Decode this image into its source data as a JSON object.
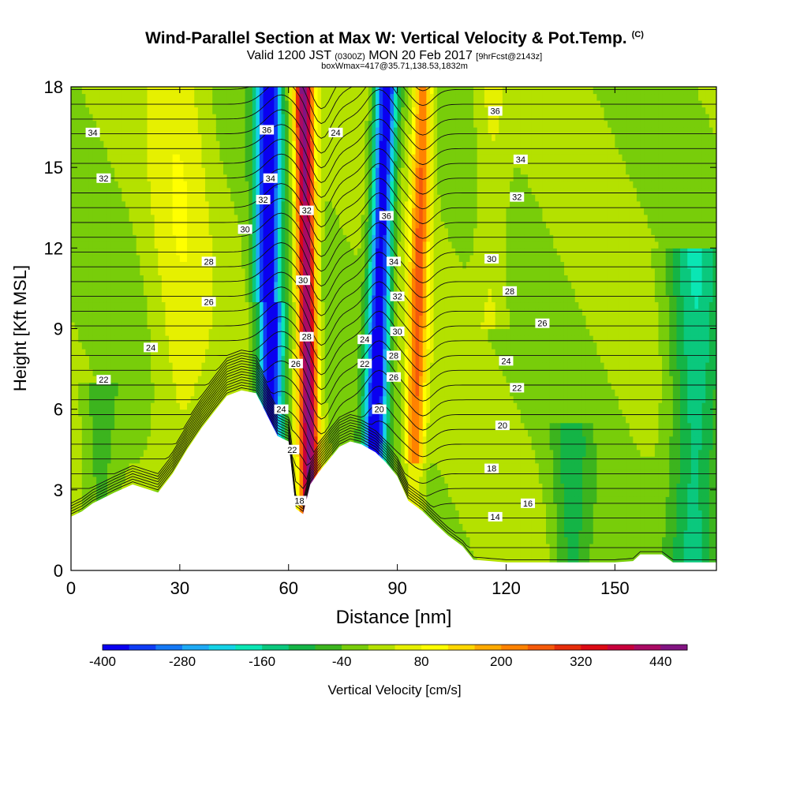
{
  "chart_data": {
    "type": "heatmap",
    "title": "Wind-Parallel Section at Max W: Vertical Velocity & Pot.Temp.",
    "title_mark": "(C)",
    "subtitle_prefix": "Valid 1200 JST",
    "subtitle_utc": "(0300Z)",
    "subtitle_date": "MON 20 Feb 2017",
    "subtitle_fcst": "[9hrFcst@2143z]",
    "subsubtitle": "boxWmax=417@35.71,138.53,1832m",
    "xlabel": "Distance [nm]",
    "ylabel": "Height [Kft MSL]",
    "xlim": [
      0,
      178
    ],
    "ylim": [
      0,
      18
    ],
    "xticks": [
      "0",
      "30",
      "60",
      "90",
      "120",
      "150"
    ],
    "xtick_values": [
      0,
      30,
      60,
      90,
      120,
      150
    ],
    "yticks": [
      "0",
      "3",
      "6",
      "9",
      "12",
      "15",
      "18"
    ],
    "ytick_values": [
      0,
      3,
      6,
      9,
      12,
      15,
      18
    ],
    "colorbar": {
      "label": "Vertical Velocity [cm/s]",
      "min": -400,
      "max": 480,
      "step": 40,
      "tick_labels": [
        "-400",
        "-280",
        "-160",
        "-40",
        "80",
        "200",
        "320",
        "440"
      ],
      "tick_values": [
        -400,
        -280,
        -160,
        -40,
        80,
        200,
        320,
        440
      ],
      "colors": [
        "#0a00f0",
        "#0f3cf5",
        "#1478f5",
        "#1eaaf5",
        "#14d2e6",
        "#0ae6b4",
        "#0ac87d",
        "#14b446",
        "#3cb41e",
        "#78cd0a",
        "#b4e100",
        "#e6f000",
        "#ffff00",
        "#ffd700",
        "#ffaa00",
        "#ff8200",
        "#f55a0a",
        "#e62d0a",
        "#dc0a14",
        "#c8003c",
        "#aa0a64",
        "#821482"
      ]
    },
    "terrain": [
      [
        0,
        2.0
      ],
      [
        3,
        2.2
      ],
      [
        6,
        2.5
      ],
      [
        9,
        2.7
      ],
      [
        12,
        2.9
      ],
      [
        17,
        3.2
      ],
      [
        24,
        2.9
      ],
      [
        28,
        3.6
      ],
      [
        32,
        4.5
      ],
      [
        36,
        5.3
      ],
      [
        40,
        6.0
      ],
      [
        43,
        6.5
      ],
      [
        47,
        6.7
      ],
      [
        51,
        6.6
      ],
      [
        54,
        5.8
      ],
      [
        57,
        5.0
      ],
      [
        60,
        4.8
      ],
      [
        62,
        2.3
      ],
      [
        64,
        2.1
      ],
      [
        66,
        3.2
      ],
      [
        68,
        3.6
      ],
      [
        71,
        4.1
      ],
      [
        74,
        4.6
      ],
      [
        77,
        4.8
      ],
      [
        80,
        4.7
      ],
      [
        84,
        4.4
      ],
      [
        87,
        4.0
      ],
      [
        90,
        3.5
      ],
      [
        93,
        2.6
      ],
      [
        97,
        2.2
      ],
      [
        100,
        1.8
      ],
      [
        104,
        1.3
      ],
      [
        108,
        0.9
      ],
      [
        111,
        0.4
      ],
      [
        120,
        0.3
      ],
      [
        140,
        0.3
      ],
      [
        150,
        0.3
      ],
      [
        155,
        0.35
      ],
      [
        157,
        0.6
      ],
      [
        163,
        0.6
      ],
      [
        166,
        0.3
      ],
      [
        178,
        0.3
      ]
    ],
    "w_features": [
      {
        "x0": 18,
        "x1": 40,
        "w": 40,
        "h": "trapezoid"
      },
      {
        "x0": 48,
        "x1": 62,
        "w": -400,
        "h": "band"
      },
      {
        "x0": 63,
        "x1": 71,
        "w": 400,
        "h": "band"
      },
      {
        "x0": 80,
        "x1": 91,
        "w": -380,
        "h": "band"
      },
      {
        "x0": 93,
        "x1": 100,
        "w": 220,
        "h": "band"
      },
      {
        "x0": 163,
        "x1": 176,
        "w": -150,
        "h": "slab"
      }
    ],
    "isentrope_labels": [
      {
        "x": 6,
        "y": 16.3,
        "text": "34"
      },
      {
        "x": 9,
        "y": 14.6,
        "text": "32"
      },
      {
        "x": 54,
        "y": 16.4,
        "text": "36"
      },
      {
        "x": 55,
        "y": 14.6,
        "text": "34"
      },
      {
        "x": 53,
        "y": 13.8,
        "text": "32"
      },
      {
        "x": 48,
        "y": 12.7,
        "text": "30"
      },
      {
        "x": 38,
        "y": 11.5,
        "text": "28"
      },
      {
        "x": 38,
        "y": 10.0,
        "text": "26"
      },
      {
        "x": 22,
        "y": 8.3,
        "text": "24"
      },
      {
        "x": 9,
        "y": 7.1,
        "text": "22"
      },
      {
        "x": 65,
        "y": 13.4,
        "text": "32"
      },
      {
        "x": 64,
        "y": 10.8,
        "text": "30"
      },
      {
        "x": 65,
        "y": 8.7,
        "text": "28"
      },
      {
        "x": 62,
        "y": 7.7,
        "text": "26"
      },
      {
        "x": 58,
        "y": 6.0,
        "text": "24"
      },
      {
        "x": 61,
        "y": 4.5,
        "text": "22"
      },
      {
        "x": 63,
        "y": 2.6,
        "text": "18"
      },
      {
        "x": 73,
        "y": 16.3,
        "text": "24"
      },
      {
        "x": 87,
        "y": 13.2,
        "text": "36"
      },
      {
        "x": 89,
        "y": 11.5,
        "text": "34"
      },
      {
        "x": 90,
        "y": 10.2,
        "text": "32"
      },
      {
        "x": 90,
        "y": 8.9,
        "text": "30"
      },
      {
        "x": 89,
        "y": 8.0,
        "text": "28"
      },
      {
        "x": 89,
        "y": 7.2,
        "text": "26"
      },
      {
        "x": 81,
        "y": 8.6,
        "text": "24"
      },
      {
        "x": 81,
        "y": 7.7,
        "text": "22"
      },
      {
        "x": 85,
        "y": 6.0,
        "text": "20"
      },
      {
        "x": 117,
        "y": 17.1,
        "text": "36"
      },
      {
        "x": 124,
        "y": 15.3,
        "text": "34"
      },
      {
        "x": 123,
        "y": 13.9,
        "text": "32"
      },
      {
        "x": 116,
        "y": 11.6,
        "text": "30"
      },
      {
        "x": 121,
        "y": 10.4,
        "text": "28"
      },
      {
        "x": 130,
        "y": 9.2,
        "text": "26"
      },
      {
        "x": 120,
        "y": 7.8,
        "text": "24"
      },
      {
        "x": 123,
        "y": 6.8,
        "text": "22"
      },
      {
        "x": 119,
        "y": 5.4,
        "text": "20"
      },
      {
        "x": 116,
        "y": 3.8,
        "text": "18"
      },
      {
        "x": 126,
        "y": 2.5,
        "text": "16"
      },
      {
        "x": 117,
        "y": 2.0,
        "text": "14"
      }
    ]
  }
}
